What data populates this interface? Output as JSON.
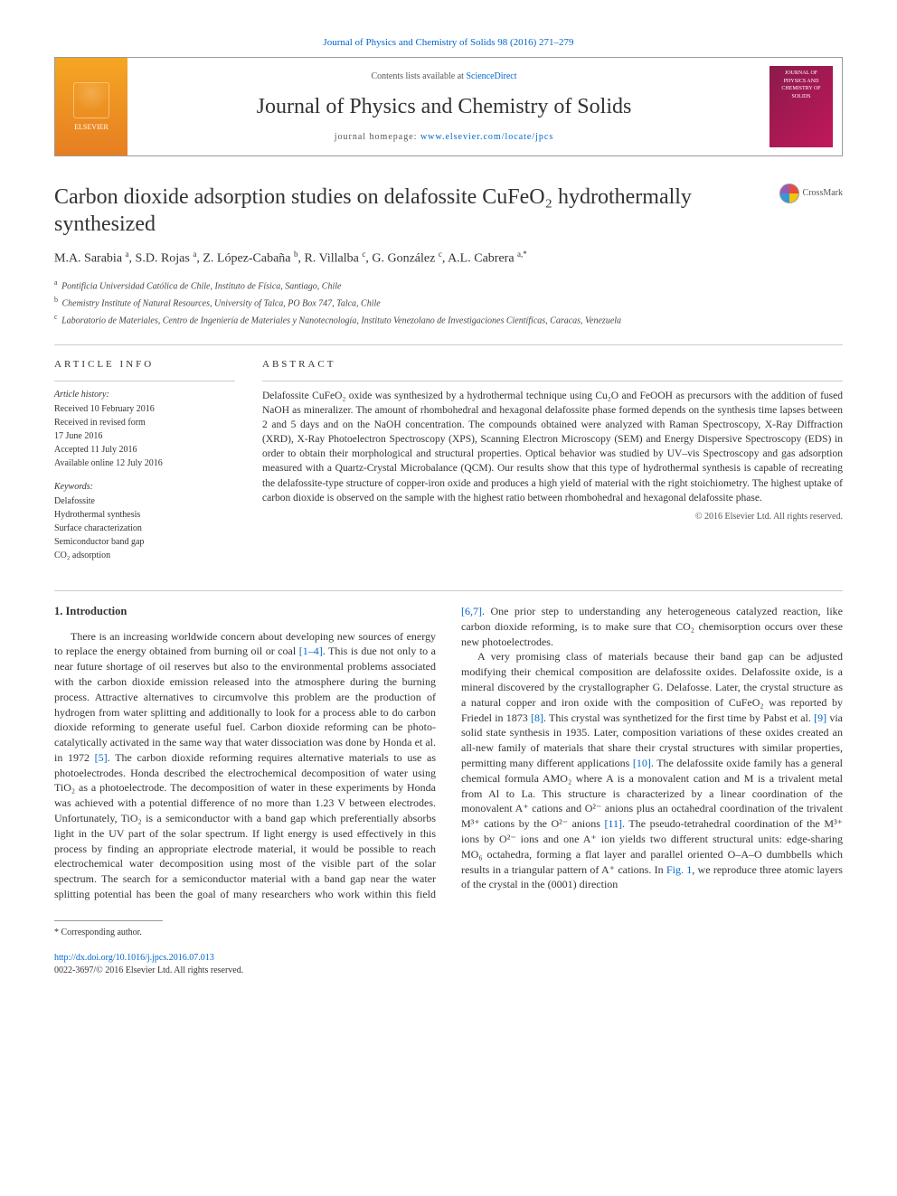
{
  "topLink": {
    "prefix": "Contents lists available at ",
    "linkText": "ScienceDirect"
  },
  "journal": {
    "name": "Journal of Physics and Chemistry of Solids",
    "homepagePrefix": "journal homepage: ",
    "homepageUrl": "www.elsevier.com/locate/jpcs",
    "coverText": "JOURNAL OF PHYSICS AND CHEMISTRY OF SOLIDS"
  },
  "elsevier": "ELSEVIER",
  "crossmark": "CrossMark",
  "article": {
    "title": "Carbon dioxide adsorption studies on delafossite CuFeO₂ hydrothermally synthesized",
    "authorsHtml": "M.A. Sarabia <sup>a</sup>, S.D. Rojas <sup>a</sup>, Z. López-Cabaña <sup>b</sup>, R. Villalba <sup>c</sup>, G. González <sup>c</sup>, A.L. Cabrera <sup>a,*</sup>",
    "affiliations": [
      {
        "sup": "a",
        "text": "Pontificia Universidad Católica de Chile, Instituto de Física, Santiago, Chile"
      },
      {
        "sup": "b",
        "text": "Chemistry Institute of Natural Resources, University of Talca, PO Box 747, Talca, Chile"
      },
      {
        "sup": "c",
        "text": "Laboratorio de Materiales, Centro de Ingeniería de Materiales y Nanotecnología, Instituto Venezolano de Investigaciones Científicas, Caracas, Venezuela"
      }
    ]
  },
  "meta": {
    "infoHeading": "ARTICLE INFO",
    "abstractHeading": "ABSTRACT",
    "historyLabel": "Article history:",
    "history": [
      "Received 10 February 2016",
      "Received in revised form",
      "17 June 2016",
      "Accepted 11 July 2016",
      "Available online 12 July 2016"
    ],
    "keywordsLabel": "Keywords:",
    "keywords": [
      "Delafossite",
      "Hydrothermal synthesis",
      "Surface characterization",
      "Semiconductor band gap",
      "CO₂ adsorption"
    ],
    "abstract": "Delafossite CuFeO₂ oxide was synthesized by a hydrothermal technique using Cu₂O and FeOOH as precursors with the addition of fused NaOH as mineralizer. The amount of rhombohedral and hexagonal delafossite phase formed depends on the synthesis time lapses between 2 and 5 days and on the NaOH concentration. The compounds obtained were analyzed with Raman Spectroscopy, X-Ray Diffraction (XRD), X-Ray Photoelectron Spectroscopy (XPS), Scanning Electron Microscopy (SEM) and Energy Dispersive Spectroscopy (EDS) in order to obtain their morphological and structural properties. Optical behavior was studied by UV–vis Spectroscopy and gas adsorption measured with a Quartz-Crystal Microbalance (QCM). Our results show that this type of hydrothermal synthesis is capable of recreating the delafossite-type structure of copper-iron oxide and produces a high yield of material with the right stoichiometry. The highest uptake of carbon dioxide is observed on the sample with the highest ratio between rhombohedral and hexagonal delafossite phase.",
    "copyright": "© 2016 Elsevier Ltd. All rights reserved."
  },
  "body": {
    "sectionHeading": "1.  Introduction",
    "p1a": "There is an increasing worldwide concern about developing new sources of energy to replace the energy obtained from burning oil or coal ",
    "p1link": "[1–4]",
    "p1b": ". This is due not only to a near future shortage of oil reserves but also to the environmental problems associated with the carbon dioxide emission released into the atmosphere during the burning process. Attractive alternatives to circumvolve this problem are the production of hydrogen from water splitting and additionally to look for a process able to do carbon dioxide reforming to generate useful fuel. Carbon dioxide reforming can be photo-catalytically activated in the same way that water dissociation was done by Honda et al. in 1972 ",
    "p1link2": "[5]",
    "p1c": ". The carbon dioxide reforming requires alternative materials to use as photoelectrodes. Honda described the electrochemical decomposition of water using TiO₂ as a photoelectrode. The decomposition of water in these experiments by Honda was achieved with a potential difference of no more than 1.23 V between electrodes. Unfortunately, TiO₂ is a semiconductor with a band gap which preferentially absorbs light in the UV part of the solar spectrum. If light energy is used effectively in this process by finding an appropriate electrode material, it would be possible to reach electrochemical water decomposition using most of the visible part of the solar spectrum. The search for a semiconductor material with a band gap near the water splitting potential has been the goal of many researchers who work within this field ",
    "p1link3": "[6,7]",
    "p1d": ". One prior step to understanding any heterogeneous catalyzed reaction, like carbon dioxide reforming, is to make sure that CO₂ chemisorption occurs over these new photoelectrodes.",
    "p2a": "A very promising class of materials because their band gap can be adjusted modifying their chemical composition are delafossite oxides. Delafossite oxide, is a mineral discovered by the crystallographer G. Delafosse. Later, the crystal structure as a natural copper and iron oxide with the composition of CuFeO₂ was reported by Friedel in 1873 ",
    "p2link1": "[8]",
    "p2b": ". This crystal was synthetized for the first time by Pabst et al. ",
    "p2link2": "[9]",
    "p2c": " via solid state synthesis in 1935. Later, composition variations of these oxides created an all-new family of materials that share their crystal structures with similar properties, permitting many different applications ",
    "p2link3": "[10]",
    "p2d": ". The delafossite oxide family has a general chemical formula AMO₂ where A is a monovalent cation and M is a trivalent metal from Al to La. This structure is characterized by a linear coordination of the monovalent A⁺ cations and O²⁻ anions plus an octahedral coordination of the trivalent M³⁺ cations by the O²⁻ anions ",
    "p2link4": "[11]",
    "p2e": ". The pseudo-tetrahedral coordination of the M³⁺ ions by O²⁻ ions and one A⁺ ion yields two different structural units: edge-sharing MO₆ octahedra, forming a flat layer and parallel oriented O–A–O dumbbells which results in a triangular pattern of A⁺ cations. In ",
    "p2link5": "Fig. 1",
    "p2f": ", we reproduce three atomic layers of the crystal in the (0001) direction"
  },
  "footnote": "* Corresponding author.",
  "footer": {
    "doi": "http://dx.doi.org/10.1016/j.jpcs.2016.07.013",
    "issn": "0022-3697/© 2016 Elsevier Ltd. All rights reserved."
  },
  "citation": "Journal of Physics and Chemistry of Solids 98 (2016) 271–279"
}
